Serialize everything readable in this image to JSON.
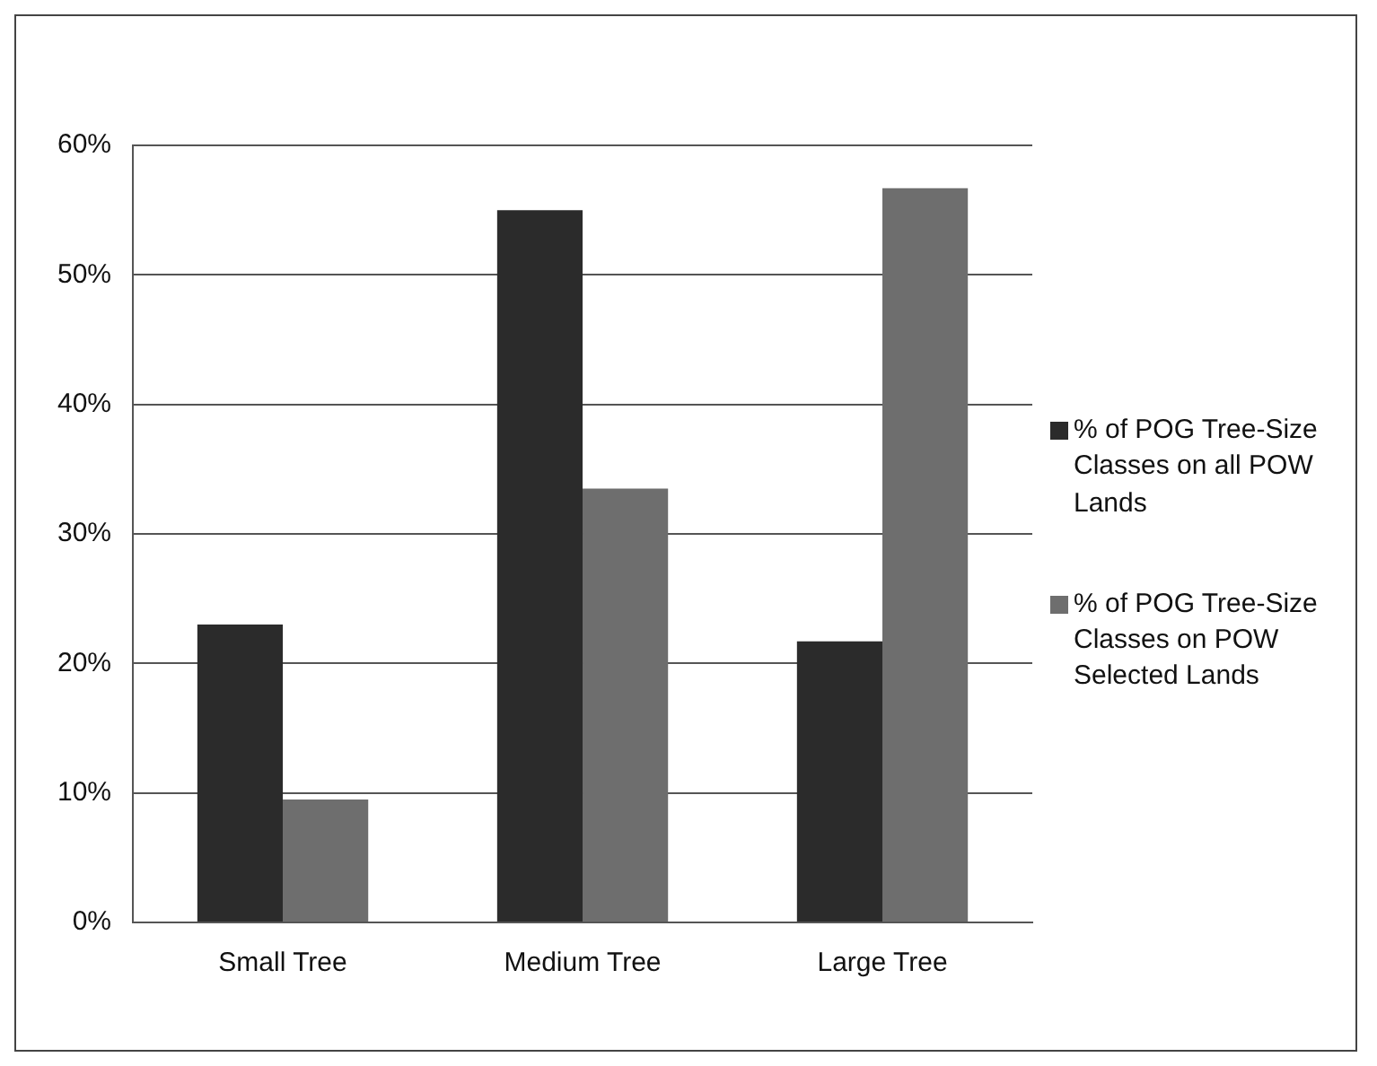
{
  "chart_data": {
    "type": "bar",
    "categories": [
      "Small Tree",
      "Medium Tree",
      "Large Tree"
    ],
    "series": [
      {
        "name": "% of POG Tree-Size Classes on all POW Lands",
        "color": "#2b2b2b",
        "values": [
          23,
          55,
          21.7
        ]
      },
      {
        "name": "% of POG Tree-Size Classes on POW Selected Lands",
        "color": "#6e6e6e",
        "values": [
          9.5,
          33.5,
          56.7
        ]
      }
    ],
    "ylim": [
      0,
      60
    ],
    "yticks": [
      {
        "value": 0,
        "label": "0%"
      },
      {
        "value": 10,
        "label": "10%"
      },
      {
        "value": 20,
        "label": "20%"
      },
      {
        "value": 30,
        "label": "30%"
      },
      {
        "value": 40,
        "label": "40%"
      },
      {
        "value": 50,
        "label": "50%"
      },
      {
        "value": 60,
        "label": "60%"
      }
    ],
    "grid": "y",
    "legend": "right"
  }
}
